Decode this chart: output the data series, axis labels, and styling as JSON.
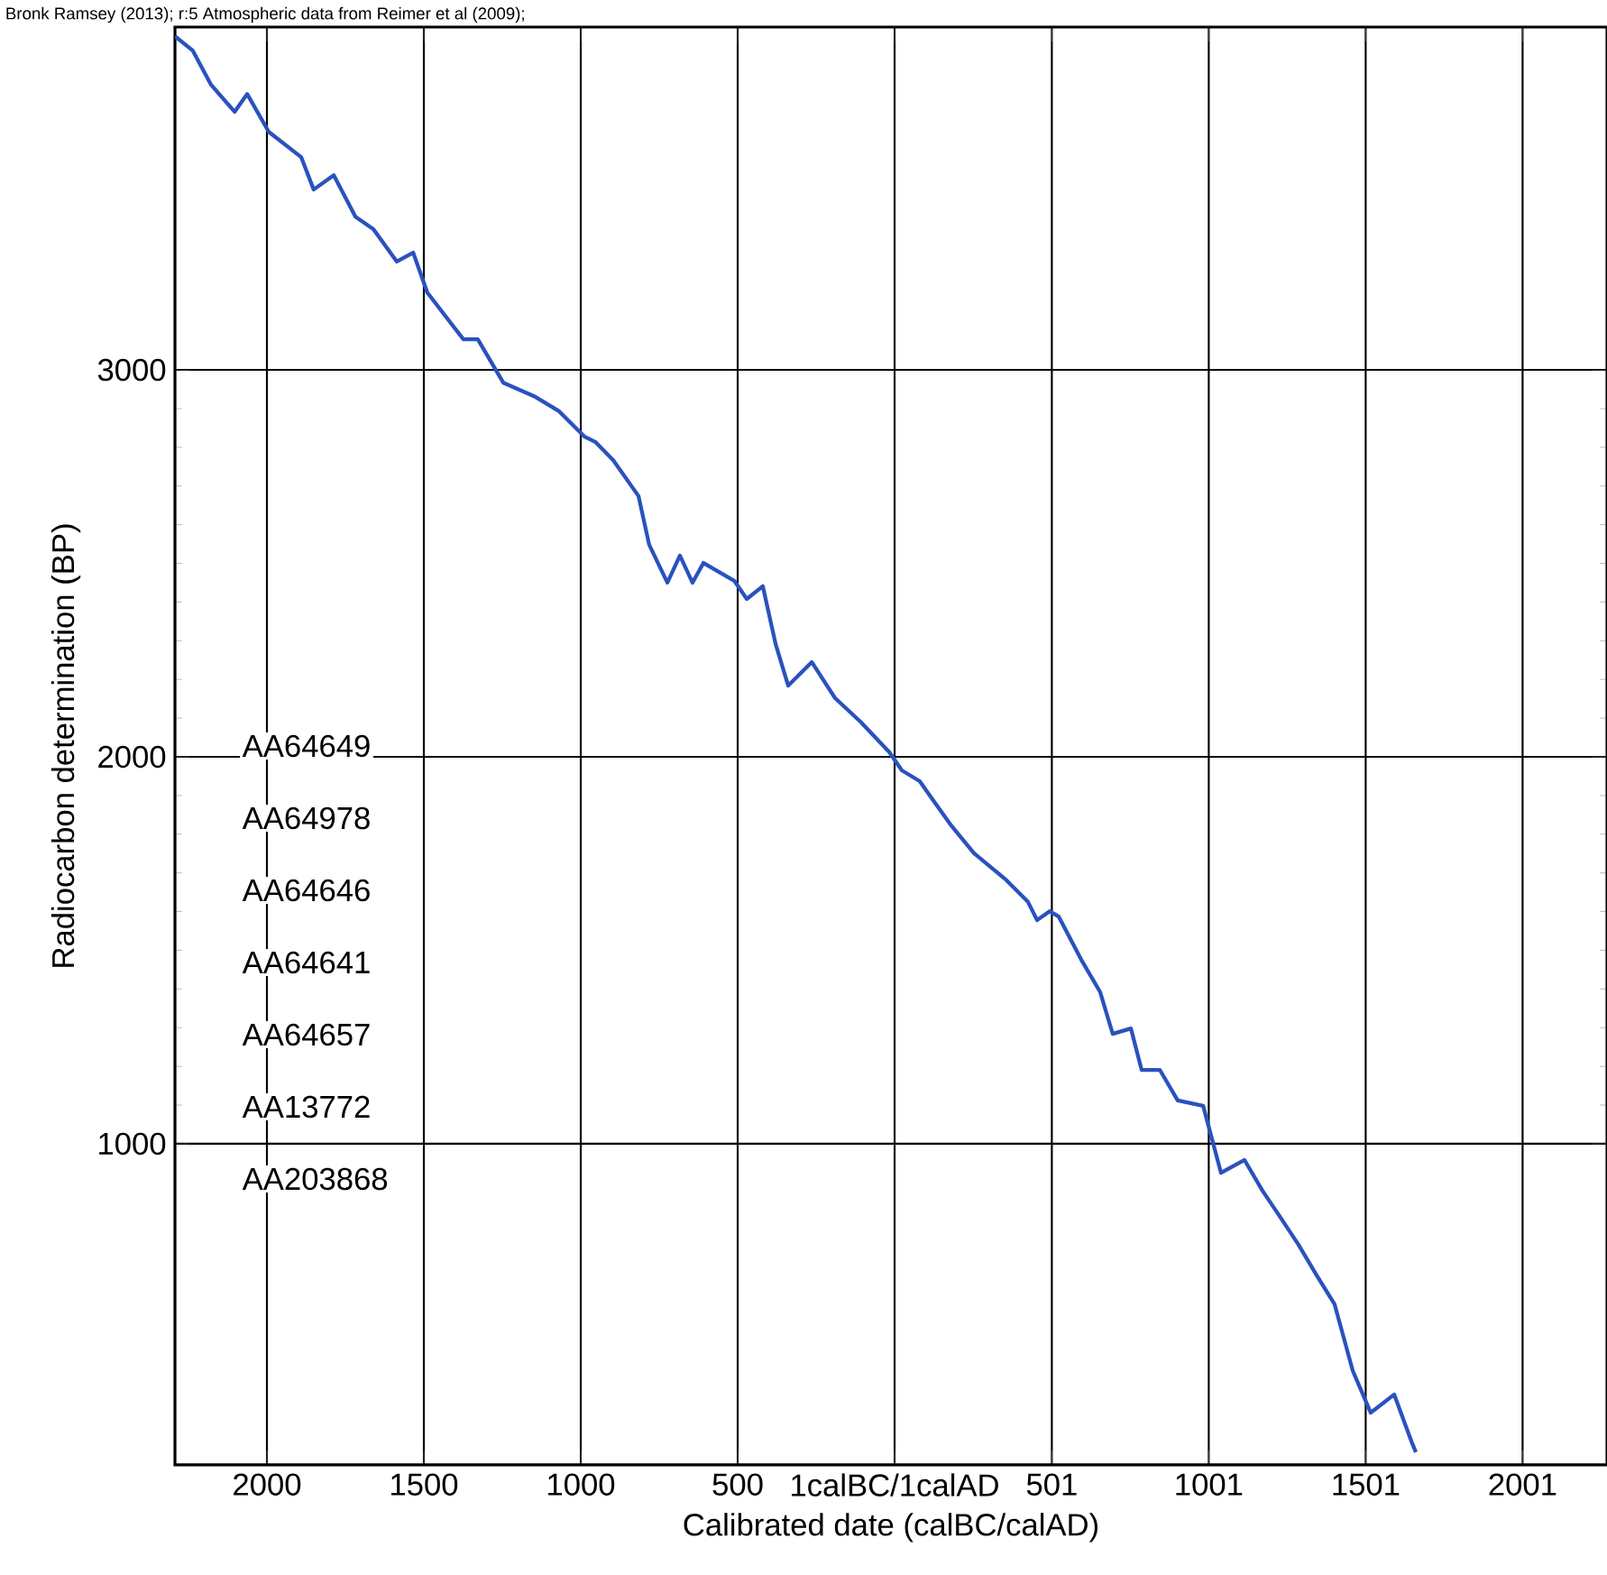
{
  "chart_data": {
    "type": "line",
    "title": "Bronk Ramsey (2013); r:5 Atmospheric data from Reimer et al (2009);",
    "xlabel": "Calibrated date (calBC/calAD)",
    "ylabel": "Radiocarbon determination (BP)",
    "series": [
      {
        "color": "#2a52be",
        "x": [
          -2293,
          -2236,
          -2178,
          -2103,
          -2063,
          -1994,
          -1891,
          -1851,
          -1787,
          -1718,
          -1661,
          -1586,
          -1534,
          -1489,
          -1374,
          -1328,
          -1247,
          -1144,
          -1069,
          -989,
          -954,
          -897,
          -816,
          -782,
          -724,
          -684,
          -644,
          -609,
          -511,
          -471,
          -420,
          -379,
          -339,
          -264,
          -190,
          -109,
          -17,
          23,
          80,
          121,
          178,
          253,
          351,
          425,
          454,
          494,
          523,
          598,
          655,
          695,
          753,
          787,
          845,
          902,
          983,
          1040,
          1115,
          1172,
          1230,
          1287,
          1345,
          1402,
          1460,
          1517,
          1592,
          1649,
          1661
        ],
        "values": [
          3862,
          3825,
          3737,
          3667,
          3713,
          3615,
          3550,
          3466,
          3503,
          3396,
          3364,
          3280,
          3303,
          3200,
          3079,
          3079,
          2967,
          2930,
          2893,
          2828,
          2814,
          2767,
          2674,
          2548,
          2450,
          2520,
          2450,
          2501,
          2455,
          2408,
          2441,
          2291,
          2184,
          2245,
          2152,
          2091,
          2012,
          1965,
          1937,
          1890,
          1825,
          1751,
          1685,
          1625,
          1578,
          1601,
          1587,
          1471,
          1392,
          1284,
          1298,
          1191,
          1191,
          1112,
          1098,
          925,
          958,
          879,
          809,
          739,
          660,
          585,
          413,
          305,
          352,
          226,
          203
        ]
      }
    ],
    "xlim": [
      -2293,
      2270
    ],
    "ylim": [
      170,
      3886
    ],
    "xticks": [
      {
        "value": -2000,
        "label": "2000"
      },
      {
        "value": -1500,
        "label": "1500"
      },
      {
        "value": -1000,
        "label": "1000"
      },
      {
        "value": -500,
        "label": "500"
      },
      {
        "value": 0,
        "label": "1calBC/1calAD"
      },
      501,
      1001,
      1501,
      2001
    ],
    "yticks": [
      1000,
      2000,
      3000
    ],
    "grid": true,
    "marker": "none",
    "line_style": "solid",
    "annotations": [
      "AA64649",
      "AA64978",
      "AA64646",
      "AA64641",
      "AA64657",
      "AA13772",
      "AA203868"
    ]
  }
}
